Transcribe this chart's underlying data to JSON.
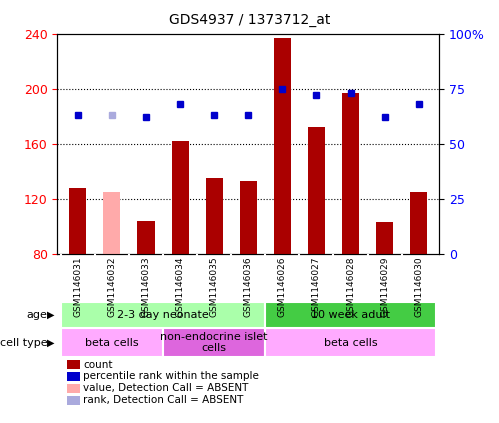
{
  "title": "GDS4937 / 1373712_at",
  "samples": [
    "GSM1146031",
    "GSM1146032",
    "GSM1146033",
    "GSM1146034",
    "GSM1146035",
    "GSM1146036",
    "GSM1146026",
    "GSM1146027",
    "GSM1146028",
    "GSM1146029",
    "GSM1146030"
  ],
  "counts": [
    128,
    125,
    104,
    162,
    135,
    133,
    237,
    172,
    197,
    103,
    125
  ],
  "count_absent": [
    false,
    true,
    false,
    false,
    false,
    false,
    false,
    false,
    false,
    false,
    false
  ],
  "percentile_ranks": [
    63,
    63,
    62,
    68,
    63,
    63,
    75,
    72,
    73,
    62,
    68
  ],
  "rank_absent": [
    false,
    true,
    false,
    false,
    false,
    false,
    false,
    false,
    false,
    false,
    false
  ],
  "ylim_left": [
    80,
    240
  ],
  "ylim_right": [
    0,
    100
  ],
  "yticks_left": [
    80,
    120,
    160,
    200,
    240
  ],
  "yticks_right": [
    0,
    25,
    50,
    75,
    100
  ],
  "ytick_labels_right": [
    "0",
    "25",
    "50",
    "75",
    "100%"
  ],
  "bar_color": "#aa0000",
  "bar_absent_color": "#ffaaaa",
  "rank_color": "#0000cc",
  "rank_absent_color": "#aaaadd",
  "age_groups": [
    {
      "label": "2-3 day neonate",
      "start": 0,
      "end": 6,
      "color": "#aaffaa"
    },
    {
      "label": "10 week adult",
      "start": 6,
      "end": 11,
      "color": "#44cc44"
    }
  ],
  "cell_type_groups": [
    {
      "label": "beta cells",
      "start": 0,
      "end": 3,
      "color": "#ffaaff"
    },
    {
      "label": "non-endocrine islet\ncells",
      "start": 3,
      "end": 6,
      "color": "#dd66dd"
    },
    {
      "label": "beta cells",
      "start": 6,
      "end": 11,
      "color": "#ffaaff"
    }
  ],
  "legend_items": [
    {
      "label": "count",
      "color": "#aa0000",
      "type": "square"
    },
    {
      "label": "percentile rank within the sample",
      "color": "#0000cc",
      "type": "square"
    },
    {
      "label": "value, Detection Call = ABSENT",
      "color": "#ffaaaa",
      "type": "square"
    },
    {
      "label": "rank, Detection Call = ABSENT",
      "color": "#aaaadd",
      "type": "square"
    }
  ],
  "age_label": "age",
  "cell_type_label": "cell type",
  "xlabel_fontsize": 7,
  "title_fontsize": 11,
  "background_color": "#ffffff"
}
